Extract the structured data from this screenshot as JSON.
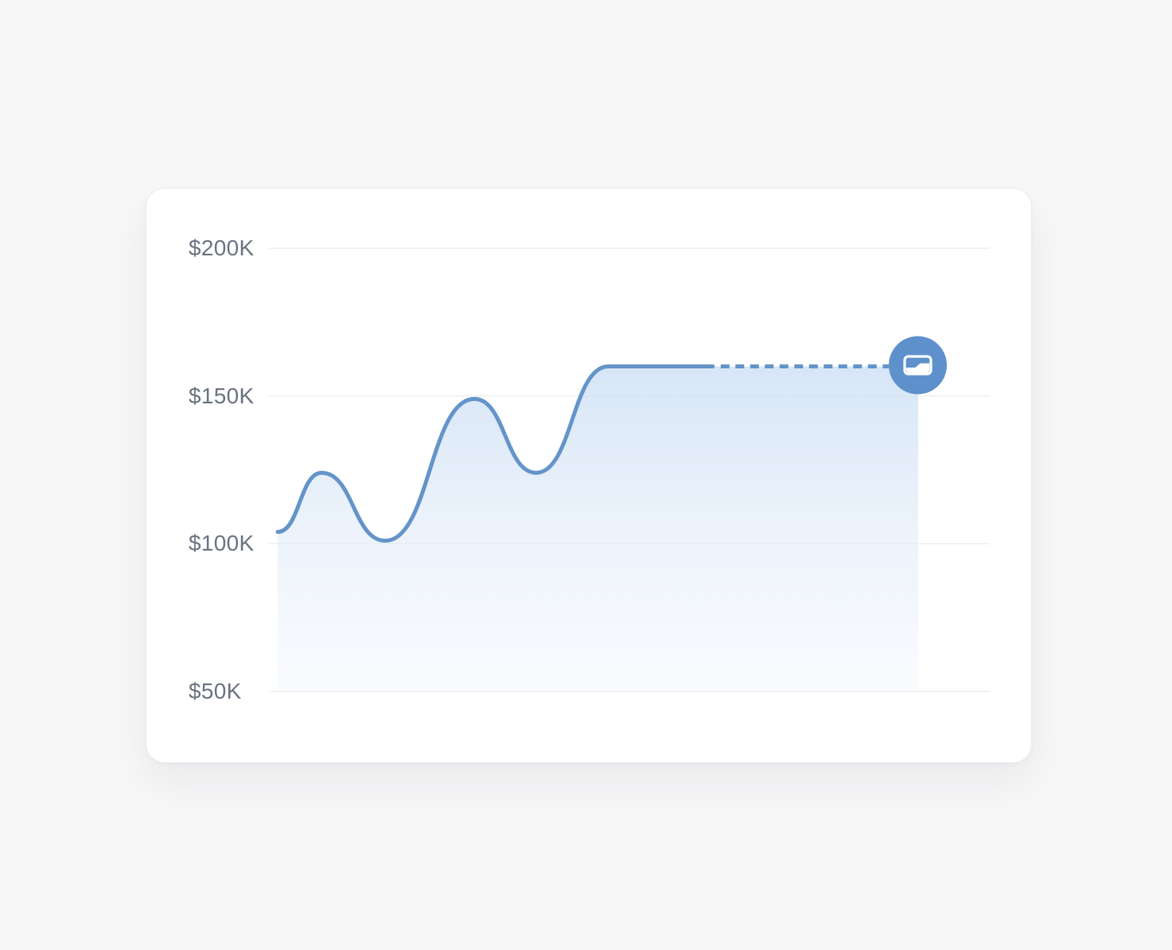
{
  "colors": {
    "page_bg": "#f7f7f8",
    "card_bg": "#ffffff",
    "card_border": "#e9ebf1",
    "gridline": "#e7e9ee",
    "axis_label": "#6b7280",
    "line": "#6494c9",
    "fill_top": "#cfe1f5",
    "fill_bottom": "#eef4fc",
    "icon_bg": "#5e91cb",
    "icon_fg": "#ffffff"
  },
  "chart_data": {
    "type": "area",
    "title": "",
    "xlabel": "",
    "ylabel": "",
    "unit": "$K",
    "ylim": [
      50,
      200
    ],
    "grid": "horizontal",
    "legend": "none",
    "y_ticks": [
      {
        "label": "$200K",
        "value": 200
      },
      {
        "label": "$150K",
        "value": 150
      },
      {
        "label": "$100K",
        "value": 100
      },
      {
        "label": "$50K",
        "value": 50
      }
    ],
    "series": [
      {
        "name": "value",
        "style": "smooth-area",
        "points": [
          {
            "x": 0.0,
            "v": 104
          },
          {
            "x": 0.072,
            "v": 124
          },
          {
            "x": 0.176,
            "v": 101
          },
          {
            "x": 0.322,
            "v": 149
          },
          {
            "x": 0.423,
            "v": 124
          },
          {
            "x": 0.541,
            "v": 160
          }
        ],
        "plateau": {
          "v": 160,
          "solid_to_x": 0.712
        },
        "projection": {
          "style": "dashed",
          "v": 160,
          "from_x": 0.712,
          "to_x": 1.0
        },
        "end_marker": "card-icon-badge"
      }
    ]
  }
}
